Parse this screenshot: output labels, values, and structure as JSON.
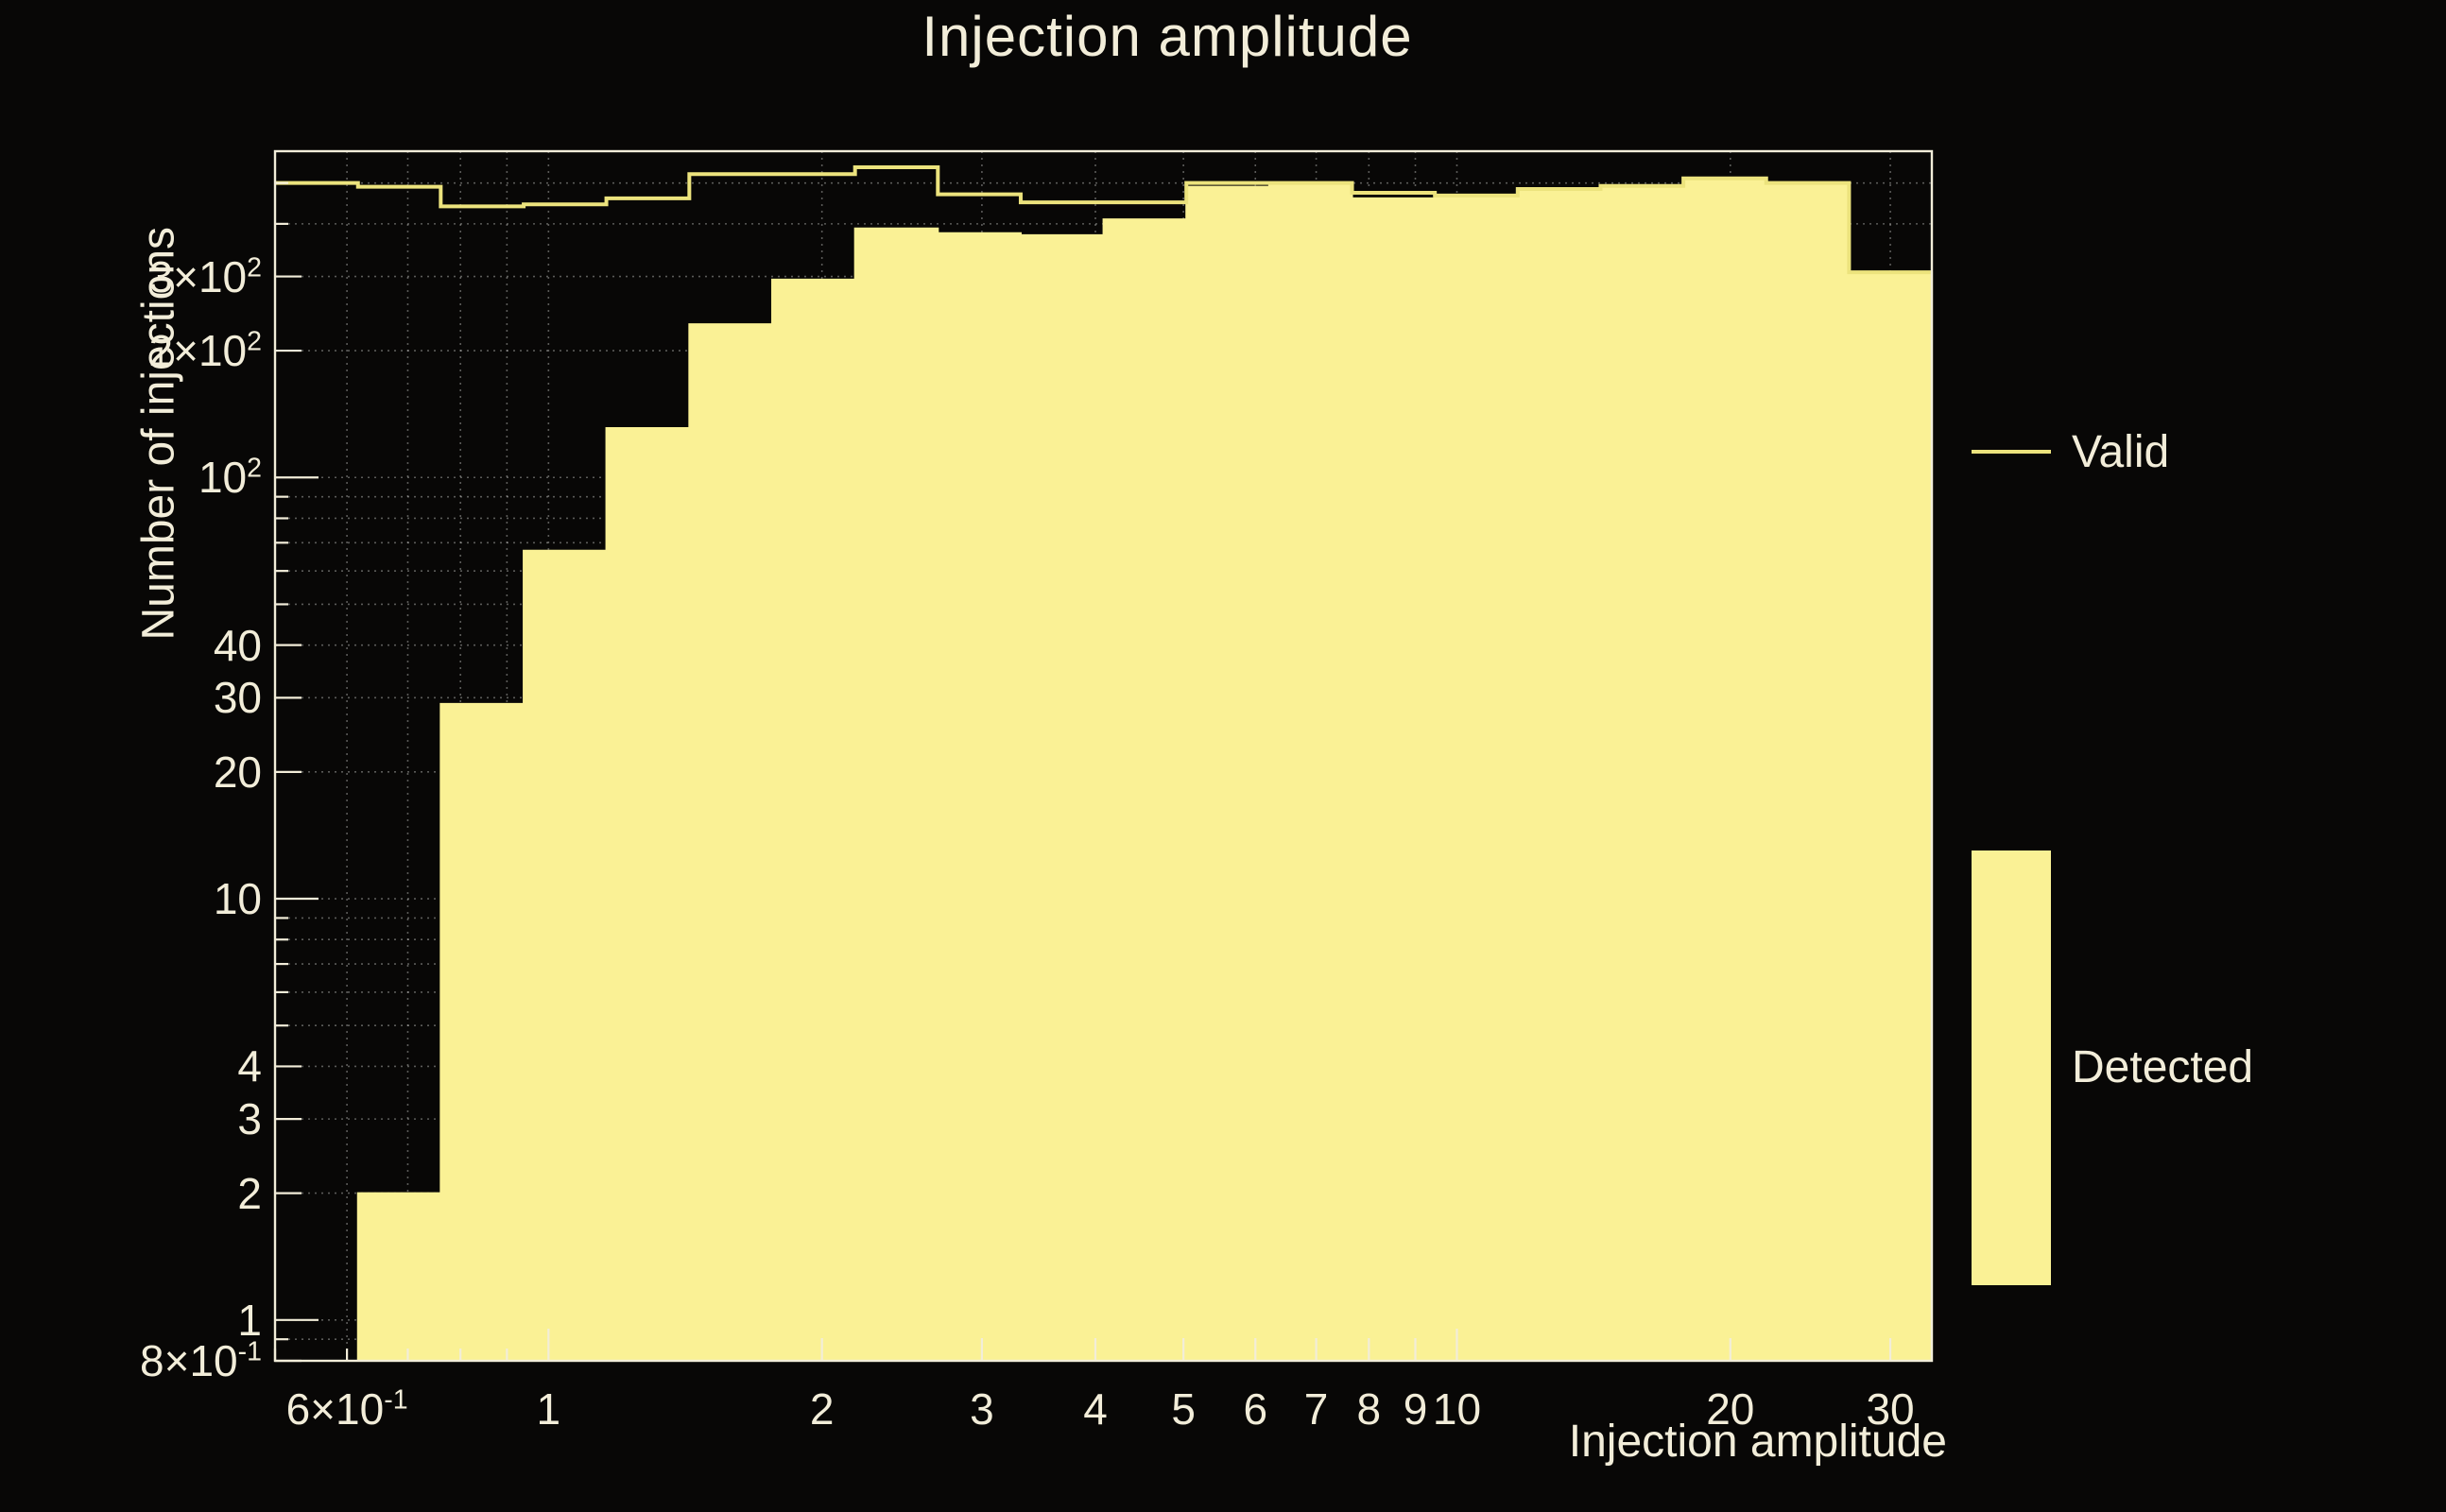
{
  "title": "Injection amplitude",
  "legend": {
    "valid_label": "Valid",
    "detected_label": "Detected"
  },
  "colors": {
    "background": "#080706",
    "frame": "#f2edd9",
    "text": "#f2edd9",
    "grid": "rgba(230,230,225,0.38)",
    "valid_line": "#ece37d",
    "detected_fill": "#faf195"
  },
  "chart_data": {
    "type": "bar",
    "subtype": "step-histogram-log-log",
    "title": "Injection amplitude",
    "xlabel": "Injection amplitude",
    "ylabel": "Number of injections",
    "x_scale": "log",
    "y_scale": "log",
    "xlim": [
      0.5,
      33.33
    ],
    "ylim": [
      0.8,
      595
    ],
    "grid": true,
    "legend_position": "right",
    "bin_edges": [
      0.5,
      0.617,
      0.761,
      0.939,
      1.158,
      1.429,
      1.763,
      2.175,
      2.683,
      3.31,
      4.083,
      5.037,
      6.214,
      7.666,
      9.457,
      11.666,
      14.392,
      17.755,
      21.903,
      27.021,
      33.334
    ],
    "series": [
      {
        "name": "Valid",
        "style": "line",
        "values": [
          500,
          490,
          440,
          445,
          460,
          525,
          525,
          545,
          470,
          450,
          450,
          500,
          500,
          474,
          467,
          484,
          492,
          513,
          500,
          307
        ]
      },
      {
        "name": "Detected",
        "style": "fill",
        "values": [
          0,
          2,
          29,
          67,
          131,
          231,
          295,
          390,
          380,
          376,
          410,
          490,
          500,
          460,
          467,
          484,
          492,
          513,
          500,
          307
        ]
      }
    ],
    "x_ticks": [
      {
        "v": 0.6,
        "text": "6×10",
        "sup": "-1"
      },
      {
        "v": 1,
        "text": "1"
      },
      {
        "v": 2,
        "text": "2"
      },
      {
        "v": 3,
        "text": "3"
      },
      {
        "v": 4,
        "text": "4"
      },
      {
        "v": 5,
        "text": "5"
      },
      {
        "v": 6,
        "text": "6"
      },
      {
        "v": 7,
        "text": "7"
      },
      {
        "v": 8,
        "text": "8"
      },
      {
        "v": 9,
        "text": "9"
      },
      {
        "v": 10,
        "text": "10"
      },
      {
        "v": 20,
        "text": "20"
      },
      {
        "v": 30,
        "text": "30"
      }
    ],
    "y_ticks": [
      {
        "v": 0.8,
        "text": "8×10",
        "sup": "-1"
      },
      {
        "v": 1,
        "text": "1"
      },
      {
        "v": 2,
        "text": "2"
      },
      {
        "v": 3,
        "text": "3"
      },
      {
        "v": 4,
        "text": "4"
      },
      {
        "v": 10,
        "text": "10"
      },
      {
        "v": 20,
        "text": "20"
      },
      {
        "v": 30,
        "text": "30"
      },
      {
        "v": 40,
        "text": "40"
      },
      {
        "v": 100,
        "text": "10",
        "sup": "2"
      },
      {
        "v": 200,
        "text": "2×10",
        "sup": "2"
      },
      {
        "v": 300,
        "text": "3×10",
        "sup": "2"
      }
    ]
  }
}
